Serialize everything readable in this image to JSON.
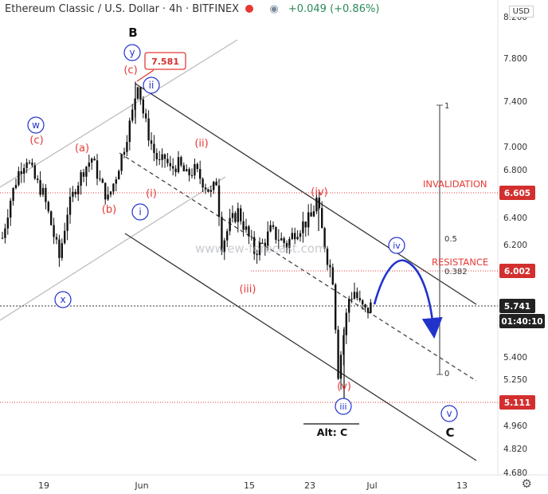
{
  "header": {
    "symbol": "Ethereum Classic / U.S. Dollar · 4h · BITFINEX",
    "change": "+0.049 (+0.86%)",
    "currency": "USD"
  },
  "colors": {
    "red": "#e53935",
    "blue": "#2233cc",
    "price_label_bg": "#d32f2f",
    "current_label_bg": "#222222",
    "candles": "#111111"
  },
  "icons": [
    "status-dot-icon",
    "eye-icon",
    "settings-gear-icon"
  ],
  "chart_data": {
    "type": "candlestick",
    "ylim": [
      4.68,
      8.28
    ],
    "y_ticks": [
      "8.200",
      "7.800",
      "7.400",
      "7.000",
      "6.800",
      "6.605",
      "6.400",
      "6.200",
      "6.002",
      "5.741",
      "5.400",
      "5.250",
      "5.111",
      "4.960",
      "4.820",
      "4.680"
    ],
    "x_ticks": [
      "19",
      "Jun",
      "15",
      "23",
      "Jul",
      "13"
    ],
    "series": [
      {
        "values_path": [
          [
            0,
            6.25
          ],
          [
            3,
            6.55
          ],
          [
            6,
            6.78
          ],
          [
            9,
            6.9
          ],
          [
            12,
            6.72
          ],
          [
            15,
            6.6
          ],
          [
            18,
            6.35
          ],
          [
            21,
            6.1
          ],
          [
            24,
            6.45
          ],
          [
            27,
            6.65
          ],
          [
            30,
            6.8
          ],
          [
            33,
            6.9
          ],
          [
            36,
            6.7
          ],
          [
            39,
            6.55
          ],
          [
            42,
            6.75
          ],
          [
            45,
            7.0
          ],
          [
            48,
            7.3
          ],
          [
            50,
            7.58
          ],
          [
            52,
            7.3
          ],
          [
            54,
            7.1
          ],
          [
            56,
            6.95
          ],
          [
            58,
            6.85
          ],
          [
            60,
            6.9
          ],
          [
            62,
            6.8
          ],
          [
            65,
            6.85
          ],
          [
            68,
            6.75
          ],
          [
            71,
            6.8
          ],
          [
            74,
            6.7
          ],
          [
            77,
            6.6
          ],
          [
            79,
            6.7
          ],
          [
            81,
            6.2
          ],
          [
            84,
            6.35
          ],
          [
            87,
            6.45
          ],
          [
            90,
            6.3
          ],
          [
            93,
            6.15
          ],
          [
            96,
            6.2
          ],
          [
            99,
            6.3
          ],
          [
            102,
            6.25
          ],
          [
            105,
            6.2
          ],
          [
            108,
            6.3
          ],
          [
            111,
            6.35
          ],
          [
            114,
            6.4
          ],
          [
            116,
            6.55
          ],
          [
            118,
            6.3
          ],
          [
            120,
            6.1
          ],
          [
            122,
            5.95
          ],
          [
            124,
            5.3
          ],
          [
            126,
            5.55
          ],
          [
            128,
            5.8
          ],
          [
            130,
            5.85
          ],
          [
            132,
            5.75
          ],
          [
            134,
            5.7
          ],
          [
            136,
            5.74
          ]
        ]
      }
    ],
    "price_labels": [
      {
        "text": "6.605",
        "color": "red"
      },
      {
        "text": "6.002",
        "color": "red"
      },
      {
        "text": "5.741",
        "color": "dark"
      },
      {
        "text": "01:40:10",
        "color": "dark"
      },
      {
        "text": "5.111",
        "color": "red"
      }
    ],
    "horizontal_levels": [
      {
        "value": 6.605,
        "label": "INVALIDATION"
      },
      {
        "value": 6.002,
        "label": "RESISTANCE"
      },
      {
        "value": 5.111,
        "label": ""
      }
    ],
    "high_callout": "7.581",
    "fib_labels": [
      "1",
      "0.5",
      "0.382",
      "0"
    ],
    "watermark": "www.ew-forecast.com",
    "annotations_red": [
      "(c)",
      "(a)",
      "(b)",
      "(i)",
      "(ii)",
      "(iii)",
      "(iv)",
      "(v)",
      "(c)"
    ],
    "annotations_blue": [
      "w",
      "x",
      "y",
      "i",
      "ii",
      "iii",
      "iv",
      "v"
    ],
    "annotations_black": [
      "B",
      "C",
      "Alt: C"
    ]
  }
}
